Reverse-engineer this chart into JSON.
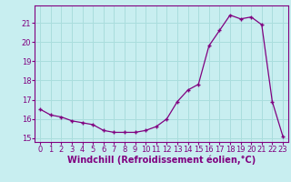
{
  "x": [
    0,
    1,
    2,
    3,
    4,
    5,
    6,
    7,
    8,
    9,
    10,
    11,
    12,
    13,
    14,
    15,
    16,
    17,
    18,
    19,
    20,
    21,
    22,
    23
  ],
  "y": [
    16.5,
    16.2,
    16.1,
    15.9,
    15.8,
    15.7,
    15.4,
    15.3,
    15.3,
    15.3,
    15.4,
    15.6,
    16.0,
    16.9,
    17.5,
    17.8,
    19.8,
    20.6,
    21.4,
    21.2,
    21.3,
    20.9,
    16.9,
    15.1
  ],
  "xlabel": "Windchill (Refroidissement éolien,°C)",
  "xlim_min": -0.5,
  "xlim_max": 23.5,
  "ylim_min": 14.8,
  "ylim_max": 21.9,
  "yticks": [
    15,
    16,
    17,
    18,
    19,
    20,
    21
  ],
  "xticks": [
    0,
    1,
    2,
    3,
    4,
    5,
    6,
    7,
    8,
    9,
    10,
    11,
    12,
    13,
    14,
    15,
    16,
    17,
    18,
    19,
    20,
    21,
    22,
    23
  ],
  "line_color": "#800080",
  "marker": "+",
  "background_color": "#c8eef0",
  "grid_color": "#aadddd",
  "label_fontsize": 7,
  "tick_fontsize": 6
}
